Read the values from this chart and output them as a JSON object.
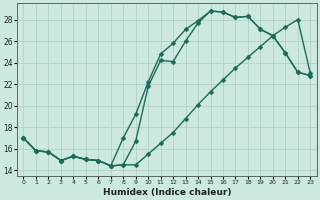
{
  "xlabel": "Humidex (Indice chaleur)",
  "background_color": "#cce8e0",
  "grid_color": "#aaccC4",
  "line_color": "#1a6b5a",
  "xlim": [
    -0.5,
    23.5
  ],
  "ylim": [
    13.5,
    29.5
  ],
  "xticks": [
    0,
    1,
    2,
    3,
    4,
    5,
    6,
    7,
    8,
    9,
    10,
    11,
    12,
    13,
    14,
    15,
    16,
    17,
    18,
    19,
    20,
    21,
    22,
    23
  ],
  "yticks": [
    14,
    16,
    18,
    20,
    22,
    24,
    26,
    28
  ],
  "line1_y": [
    17.0,
    15.8,
    15.7,
    14.9,
    15.3,
    15.0,
    14.9,
    14.4,
    17.0,
    19.2,
    22.2,
    24.8,
    25.8,
    27.1,
    27.9,
    28.8,
    28.7,
    28.2,
    28.3,
    27.1,
    26.5,
    24.9,
    23.1,
    22.8
  ],
  "line2_y": [
    17.0,
    15.8,
    15.7,
    14.9,
    15.3,
    15.0,
    14.9,
    14.4,
    14.5,
    16.7,
    21.8,
    24.2,
    24.1,
    26.0,
    27.7,
    28.8,
    28.7,
    28.2,
    28.3,
    27.1,
    26.5,
    24.9,
    23.1,
    22.8
  ],
  "line3_y": [
    17.0,
    15.8,
    15.7,
    14.9,
    15.3,
    15.0,
    14.9,
    14.4,
    14.5,
    14.5,
    15.5,
    16.5,
    17.5,
    18.8,
    20.1,
    21.3,
    22.4,
    23.5,
    24.5,
    25.5,
    26.5,
    27.3,
    28.0,
    23.0
  ],
  "markersize": 2.5,
  "linewidth": 1.0
}
